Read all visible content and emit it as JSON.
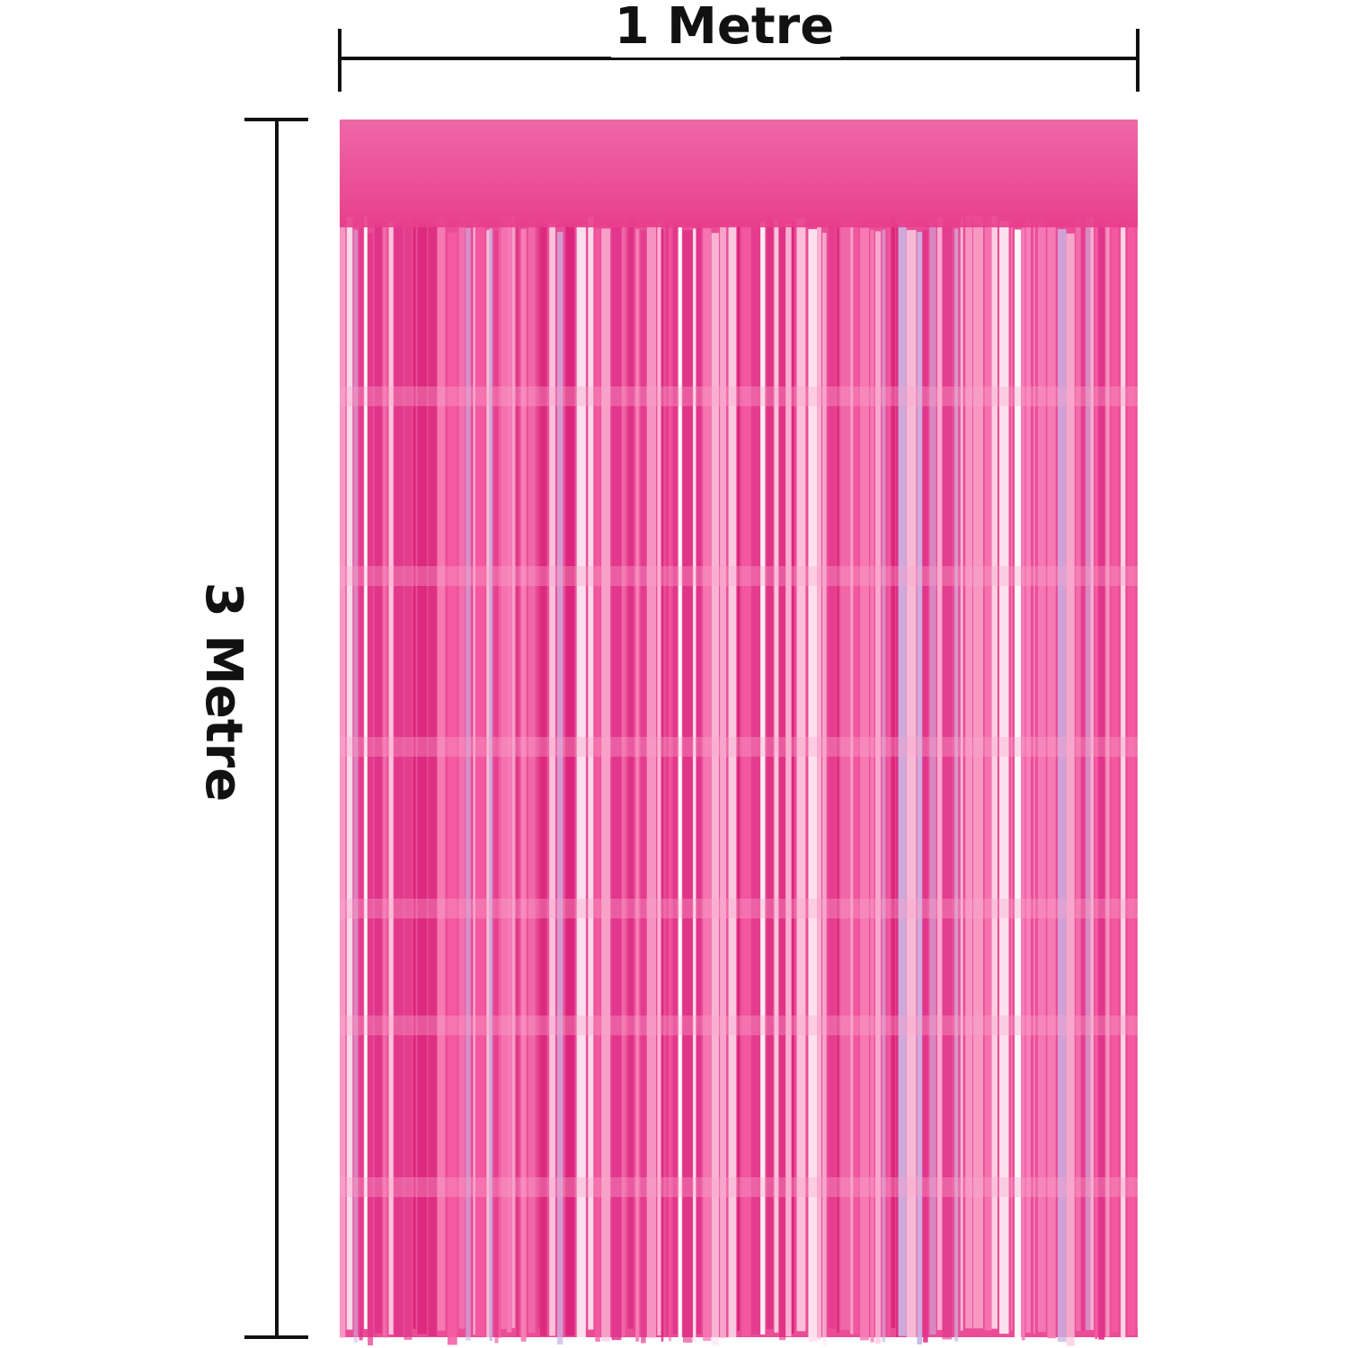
{
  "width_label": "1 Metre",
  "height_label": "3 Metre"
}
